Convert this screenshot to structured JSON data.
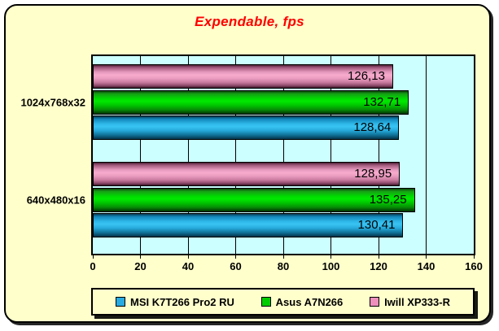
{
  "window": {
    "background": "#FFFFCC",
    "plot_background": "#CCFFFF"
  },
  "chart_data": {
    "type": "bar",
    "orientation": "horizontal",
    "title": "Expendable, fps",
    "title_color": "#FF0000",
    "categories": [
      "1024x768x32",
      "640x480x16"
    ],
    "series": [
      {
        "name": "MSI K7T266 Pro2 RU",
        "key": "blue",
        "color": "#29ABE2",
        "values": [
          128.64,
          130.41
        ],
        "labels": [
          "128,64",
          "130,41"
        ]
      },
      {
        "name": "Asus A7N266",
        "key": "green",
        "color": "#00CC00",
        "values": [
          132.71,
          135.25
        ],
        "labels": [
          "132,71",
          "135,25"
        ]
      },
      {
        "name": "Iwill XP333-R",
        "key": "pink",
        "color": "#EE8FBC",
        "values": [
          126.13,
          128.95
        ],
        "labels": [
          "126,13",
          "128,95"
        ]
      }
    ],
    "xlim": [
      0,
      160
    ],
    "x_ticks": [
      0,
      20,
      40,
      60,
      80,
      100,
      120,
      140,
      160
    ],
    "grid": true,
    "legend_position": "bottom"
  }
}
